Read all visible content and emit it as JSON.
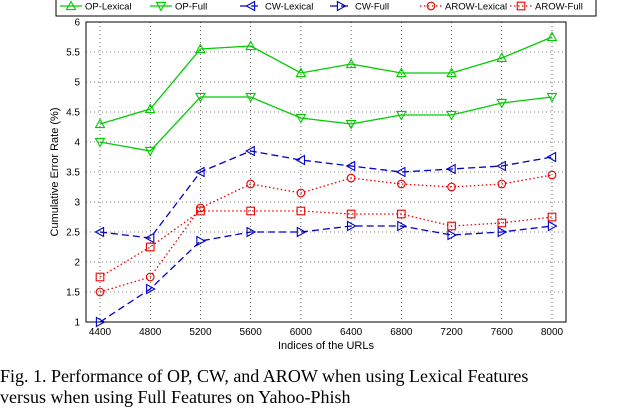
{
  "chart_data": {
    "type": "line",
    "title": "",
    "xlabel": "Indices of the URLs",
    "ylabel": "Cumulative Error Rate (%)",
    "categories": [
      "4400",
      "4800",
      "5200",
      "5600",
      "6000",
      "6400",
      "6800",
      "7200",
      "7600",
      "8000"
    ],
    "ylim": [
      1,
      6
    ],
    "yticks": [
      "1",
      "1.5",
      "2",
      "2.5",
      "3",
      "3.5",
      "4",
      "4.5",
      "5",
      "5.5",
      "6"
    ],
    "grid": true,
    "legend_position": "top",
    "series": [
      {
        "name": "OP-Lexical",
        "color": "#00cc00",
        "dash": "solid",
        "marker": "triangle-up",
        "values": [
          4.3,
          4.55,
          5.55,
          5.6,
          5.15,
          5.3,
          5.15,
          5.15,
          5.4,
          5.75
        ]
      },
      {
        "name": "OP-Full",
        "color": "#00cc00",
        "dash": "solid",
        "marker": "triangle-down",
        "values": [
          4.0,
          3.85,
          4.75,
          4.75,
          4.4,
          4.3,
          4.45,
          4.45,
          4.65,
          4.75
        ]
      },
      {
        "name": "CW-Lexical",
        "color": "#0000cc",
        "dash": "dashed",
        "marker": "triangle-left",
        "values": [
          2.5,
          2.4,
          3.5,
          3.85,
          3.7,
          3.6,
          3.5,
          3.55,
          3.6,
          3.75
        ]
      },
      {
        "name": "CW-Full",
        "color": "#0000cc",
        "dash": "dashed",
        "marker": "triangle-right",
        "values": [
          1.0,
          1.55,
          2.35,
          2.5,
          2.5,
          2.6,
          2.6,
          2.45,
          2.5,
          2.6
        ]
      },
      {
        "name": "AROW-Lexical",
        "color": "#ee0000",
        "dash": "dotted",
        "marker": "circle",
        "values": [
          1.5,
          1.75,
          2.9,
          3.3,
          3.15,
          3.4,
          3.3,
          3.25,
          3.3,
          3.45
        ]
      },
      {
        "name": "AROW-Full",
        "color": "#ee0000",
        "dash": "dotted",
        "marker": "square",
        "values": [
          1.75,
          2.25,
          2.85,
          2.85,
          2.85,
          2.8,
          2.8,
          2.6,
          2.65,
          2.75
        ]
      }
    ]
  },
  "caption": {
    "line1": "Fig. 1.   Performance of OP, CW, and AROW when using Lexical Features",
    "line2": "versus when using Full Features on Yahoo-Phish"
  }
}
